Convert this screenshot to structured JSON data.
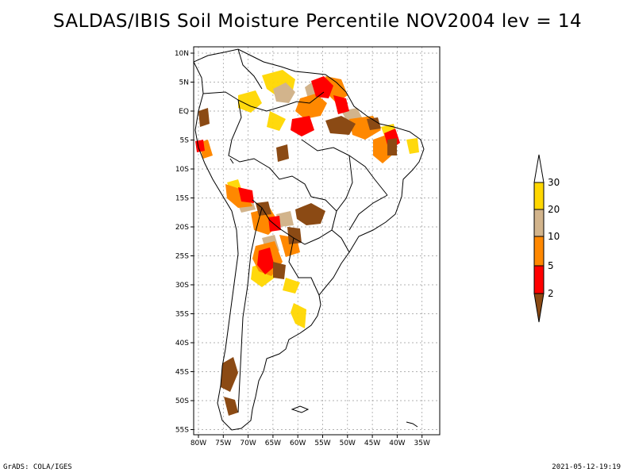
{
  "title": "SALDAS/IBIS Soil Moisture Percentile NOV2004 lev = 14",
  "latitude_labels": [
    "10N",
    "5N",
    "EQ",
    "5S",
    "10S",
    "15S",
    "20S",
    "25S",
    "30S",
    "35S",
    "40S",
    "45S",
    "50S",
    "55S"
  ],
  "longitude_labels": [
    "80W",
    "75W",
    "70W",
    "65W",
    "60W",
    "55W",
    "50W",
    "45W",
    "40W",
    "35W"
  ],
  "legend": {
    "labels": [
      "2",
      "5",
      "10",
      "20",
      "30"
    ],
    "colors": {
      "below_2": "#8b4a14",
      "2_5": "#ff0000",
      "5_10": "#ff8800",
      "10_20": "#d2b48c",
      "20_30": "#ffd700",
      "above_30": "#ffffff"
    }
  },
  "footer": {
    "left": "GrADS: COLA/IGES",
    "right": "2021-05-12-19:19"
  }
}
